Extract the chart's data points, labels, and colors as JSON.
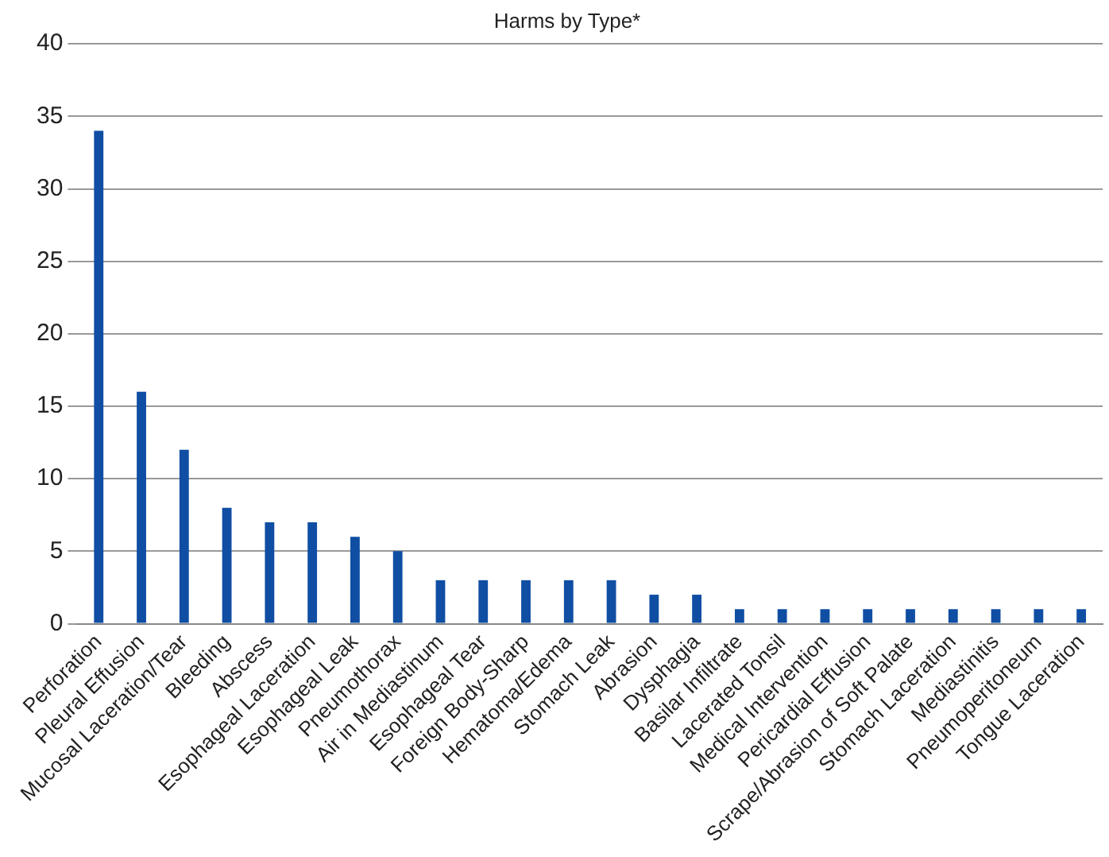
{
  "chart_data": {
    "type": "bar",
    "title": "Harms by Type*",
    "categories": [
      "Perforation",
      "Pleural Effusion",
      "Mucosal Laceration/Tear",
      "Bleeding",
      "Abscess",
      "Esophageal Laceration",
      "Esophageal Leak",
      "Pneumothorax",
      "Air in Mediastinum",
      "Esophageal Tear",
      "Foreign Body-Sharp",
      "Hematoma/Edema",
      "Stomach Leak",
      "Abrasion",
      "Dysphagia",
      "Basilar Infiltrate",
      "Lacerated Tonsil",
      "Medical Intervention",
      "Pericardial Effusion",
      "Scrape/Abrasion of Soft Palate",
      "Stomach Laceration",
      "Mediastinitis",
      "Pneumoperitoneum",
      "Tongue Laceration"
    ],
    "values": [
      34,
      16,
      12,
      8,
      7,
      7,
      6,
      5,
      3,
      3,
      3,
      3,
      3,
      2,
      2,
      1,
      1,
      1,
      1,
      1,
      1,
      1,
      1,
      1
    ],
    "color": "#0f4ea3",
    "ylim": [
      0,
      40
    ],
    "yticks": [
      0,
      5,
      10,
      15,
      20,
      25,
      30,
      35,
      40
    ],
    "grid": "y",
    "legend": false
  }
}
